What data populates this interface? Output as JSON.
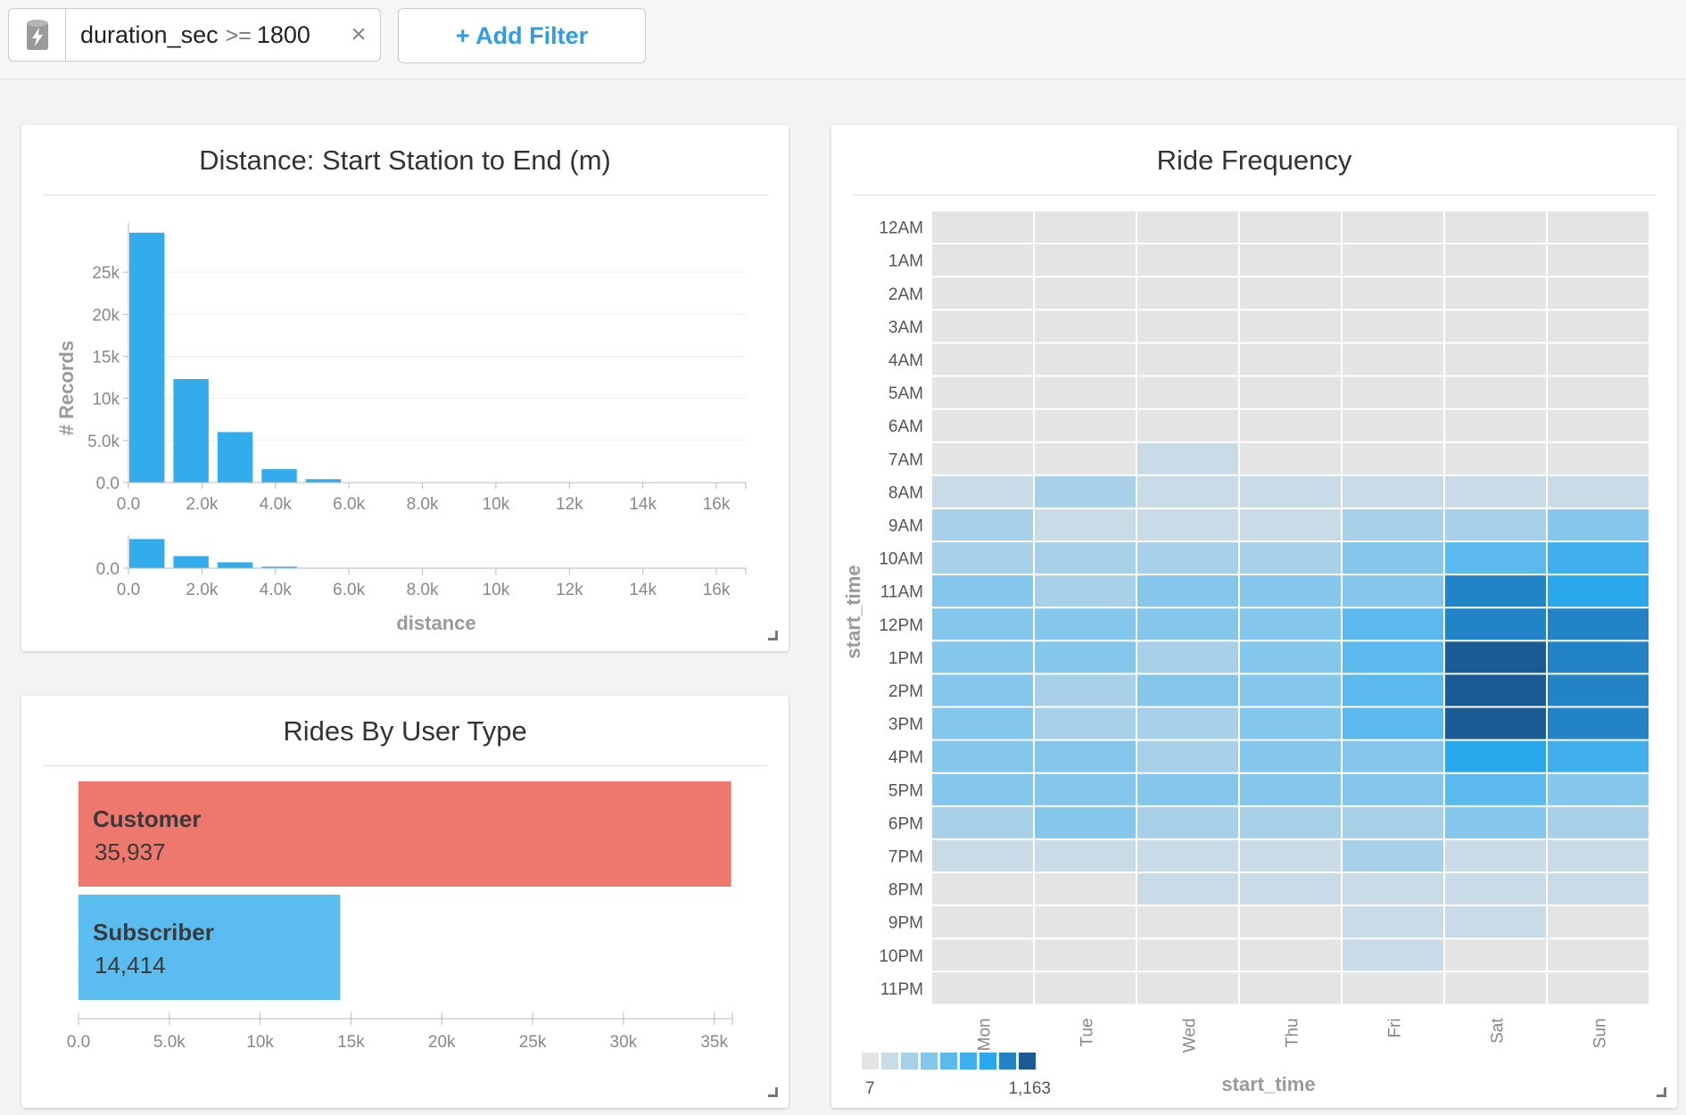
{
  "filter_bar": {
    "filter": {
      "field": "duration_sec",
      "operator": ">=",
      "value": "1800"
    },
    "add_filter_label": "+ Add Filter",
    "icon": "database-bolt-icon"
  },
  "distance_panel": {
    "title": "Distance: Start Station to End (m)",
    "chart_data": {
      "type": "bar",
      "title": "Distance: Start Station to End (m)",
      "xlabel": "distance",
      "ylabel": "# Records",
      "bin_edges": [
        0,
        1200,
        2400,
        3600,
        4800,
        6000,
        7200,
        8400,
        9600,
        10800,
        12000,
        13200,
        14400,
        15600,
        16800
      ],
      "values": [
        29700,
        12300,
        6000,
        1600,
        400,
        0,
        0,
        0,
        0,
        0,
        0,
        0,
        0,
        0
      ],
      "x_ticks": [
        0,
        2000,
        4000,
        6000,
        8000,
        10000,
        12000,
        14000,
        16000
      ],
      "x_tick_labels": [
        "0.0",
        "2.0k",
        "4.0k",
        "6.0k",
        "8.0k",
        "10k",
        "12k",
        "14k",
        "16k"
      ],
      "xlim": [
        0,
        16800
      ],
      "y_ticks": [
        0,
        5000,
        10000,
        15000,
        20000,
        25000
      ],
      "y_tick_labels": [
        "0.0",
        "5.0k",
        "10k",
        "15k",
        "20k",
        "25k"
      ],
      "ylim": [
        0,
        30000
      ],
      "grid": true,
      "brush_y_tick_labels": [
        "0.0"
      ],
      "color": "#33acec"
    }
  },
  "user_type_panel": {
    "title": "Rides By User Type",
    "chart_data": {
      "type": "bar",
      "orientation": "horizontal",
      "categories": [
        "Customer",
        "Subscriber"
      ],
      "values": [
        35937,
        14414
      ],
      "value_labels": [
        "35,937",
        "14,414"
      ],
      "colors": [
        "#ee786e",
        "#5bbcf0"
      ],
      "x_ticks": [
        0,
        5000,
        10000,
        15000,
        20000,
        25000,
        30000,
        35000
      ],
      "x_tick_labels": [
        "0.0",
        "5.0k",
        "10k",
        "15k",
        "20k",
        "25k",
        "30k",
        "35k"
      ],
      "xlim": [
        0,
        36000
      ]
    }
  },
  "ride_frequency_panel": {
    "title": "Ride Frequency",
    "chart_data": {
      "type": "heatmap",
      "title": "Ride Frequency",
      "xlabel": "start_time",
      "ylabel": "start_time",
      "x_categories": [
        "Mon",
        "Tue",
        "Wed",
        "Thu",
        "Fri",
        "Sat",
        "Sun"
      ],
      "y_categories": [
        "12AM",
        "1AM",
        "2AM",
        "3AM",
        "4AM",
        "5AM",
        "6AM",
        "7AM",
        "8AM",
        "9AM",
        "10AM",
        "11AM",
        "12PM",
        "1PM",
        "2PM",
        "3PM",
        "4PM",
        "5PM",
        "6PM",
        "7PM",
        "8PM",
        "9PM",
        "10PM",
        "11PM"
      ],
      "levels": [
        [
          0,
          0,
          0,
          0,
          0,
          0,
          0
        ],
        [
          0,
          0,
          0,
          0,
          0,
          0,
          0
        ],
        [
          0,
          0,
          0,
          0,
          0,
          0,
          0
        ],
        [
          0,
          0,
          0,
          0,
          0,
          0,
          0
        ],
        [
          0,
          0,
          0,
          0,
          0,
          0,
          0
        ],
        [
          0,
          0,
          0,
          0,
          0,
          0,
          0
        ],
        [
          0,
          0,
          0,
          0,
          0,
          0,
          0
        ],
        [
          0,
          0,
          1,
          0,
          0,
          0,
          0
        ],
        [
          1,
          2,
          1,
          1,
          1,
          1,
          1
        ],
        [
          2,
          1,
          1,
          1,
          2,
          2,
          3
        ],
        [
          2,
          2,
          2,
          2,
          3,
          4,
          5
        ],
        [
          3,
          2,
          3,
          3,
          3,
          7,
          6
        ],
        [
          3,
          3,
          3,
          3,
          4,
          7,
          7
        ],
        [
          3,
          3,
          2,
          3,
          4,
          8,
          7
        ],
        [
          3,
          2,
          3,
          3,
          4,
          8,
          7
        ],
        [
          3,
          2,
          2,
          3,
          4,
          8,
          7
        ],
        [
          3,
          3,
          2,
          3,
          3,
          6,
          5
        ],
        [
          3,
          3,
          3,
          3,
          3,
          4,
          3
        ],
        [
          2,
          3,
          2,
          2,
          2,
          3,
          2
        ],
        [
          1,
          1,
          1,
          1,
          2,
          1,
          1
        ],
        [
          0,
          0,
          1,
          1,
          1,
          1,
          1
        ],
        [
          0,
          0,
          0,
          0,
          1,
          1,
          0
        ],
        [
          0,
          0,
          0,
          0,
          1,
          0,
          0
        ],
        [
          0,
          0,
          0,
          0,
          0,
          0,
          0
        ]
      ],
      "color_scale": [
        "#e4e4e4",
        "#c8dbe7",
        "#a8d1e9",
        "#84c6ec",
        "#5bb9ee",
        "#3fb0ed",
        "#2aa8ee",
        "#2283c6",
        "#1a5a95"
      ],
      "legend": {
        "min_label": "7",
        "max_label": "1,163"
      }
    }
  }
}
